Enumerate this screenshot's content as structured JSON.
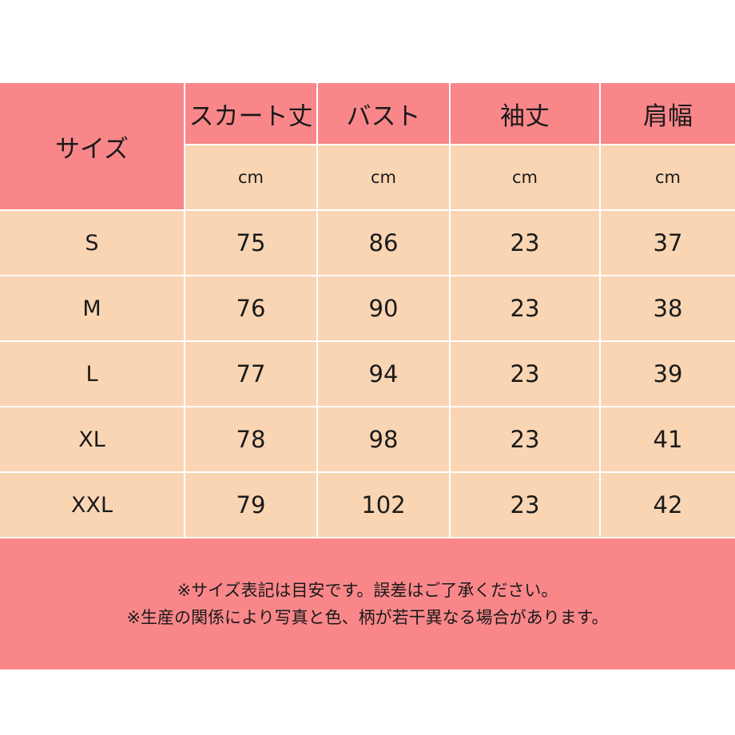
{
  "header": {
    "size_label": "サイズ",
    "columns": [
      {
        "label": "スカート丈",
        "unit": "cm"
      },
      {
        "label": "バスト",
        "unit": "cm"
      },
      {
        "label": "袖丈",
        "unit": "cm"
      },
      {
        "label": "肩幅",
        "unit": "cm"
      }
    ]
  },
  "rows": [
    {
      "size": "S",
      "skirt": "75",
      "bust": "86",
      "sleeve": "23",
      "shoulder": "37"
    },
    {
      "size": "M",
      "skirt": "76",
      "bust": "90",
      "sleeve": "23",
      "shoulder": "38"
    },
    {
      "size": "L",
      "skirt": "77",
      "bust": "94",
      "sleeve": "23",
      "shoulder": "39"
    },
    {
      "size": "XL",
      "skirt": "78",
      "bust": "98",
      "sleeve": "23",
      "shoulder": "41"
    },
    {
      "size": "XXL",
      "skirt": "79",
      "bust": "102",
      "sleeve": "23",
      "shoulder": "42"
    }
  ],
  "notes": [
    "※サイズ表記は目安です。誤差はご了承ください。",
    "※生産の関係により写真と色、柄が若干異なる場合があります。"
  ],
  "colors": {
    "header_pink": "#f9878a",
    "cell_peach": "#f9d5b3",
    "grid_line": "#ffffff"
  }
}
